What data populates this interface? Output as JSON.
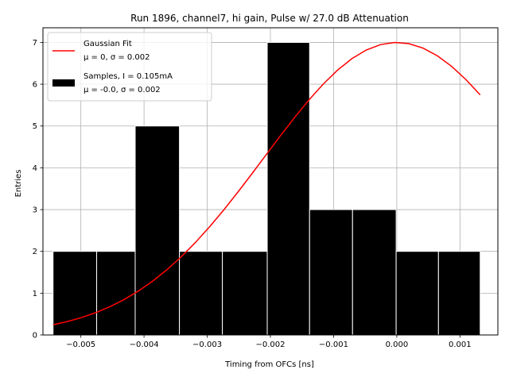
{
  "chart_data": {
    "type": "bar",
    "title": "Run 1896, channel7, hi gain, Pulse w/ 27.0 dB Attenuation",
    "xlabel": "Timing from OFCs [ns]",
    "ylabel": "Entries",
    "xlim": [
      -0.0056,
      0.0016
    ],
    "ylim": [
      0,
      7.35
    ],
    "grid": true,
    "legend_placement": "top-left",
    "histogram": {
      "name": "Samples, I = 0.105mA",
      "name_line2": "μ = -0.0, σ = 0.002",
      "color": "#000000",
      "edge_color": "#ffffff",
      "bins": [
        {
          "x0": -0.00544,
          "x1": -0.00475,
          "count": 2
        },
        {
          "x0": -0.00475,
          "x1": -0.00414,
          "count": 2
        },
        {
          "x0": -0.00414,
          "x1": -0.00344,
          "count": 5
        },
        {
          "x0": -0.00344,
          "x1": -0.00276,
          "count": 2
        },
        {
          "x0": -0.00276,
          "x1": -0.00205,
          "count": 2
        },
        {
          "x0": -0.00205,
          "x1": -0.00138,
          "count": 7
        },
        {
          "x0": -0.00138,
          "x1": -0.0007,
          "count": 3
        },
        {
          "x0": -0.0007,
          "x1": -1e-05,
          "count": 3
        },
        {
          "x0": -1e-05,
          "x1": 0.00066,
          "count": 2
        },
        {
          "x0": 0.00066,
          "x1": 0.00132,
          "count": 2
        }
      ]
    },
    "fit": {
      "name": "Gaussian Fit",
      "name_line2": "μ = 0, σ = 0.002",
      "color": "#ff0000",
      "amplitude": 7.0,
      "mu": 0.0,
      "sigma": 0.0021,
      "x_range": [
        -0.00544,
        0.00132
      ]
    },
    "x_ticks": [
      {
        "value": -0.005,
        "label": "−0.005"
      },
      {
        "value": -0.004,
        "label": "−0.004"
      },
      {
        "value": -0.003,
        "label": "−0.003"
      },
      {
        "value": -0.002,
        "label": "−0.002"
      },
      {
        "value": -0.001,
        "label": "−0.001"
      },
      {
        "value": 0.0,
        "label": "0.000"
      },
      {
        "value": 0.001,
        "label": "0.001"
      }
    ],
    "y_ticks": [
      {
        "value": 0,
        "label": "0"
      },
      {
        "value": 1,
        "label": "1"
      },
      {
        "value": 2,
        "label": "2"
      },
      {
        "value": 3,
        "label": "3"
      },
      {
        "value": 4,
        "label": "4"
      },
      {
        "value": 5,
        "label": "5"
      },
      {
        "value": 6,
        "label": "6"
      },
      {
        "value": 7,
        "label": "7"
      }
    ]
  }
}
